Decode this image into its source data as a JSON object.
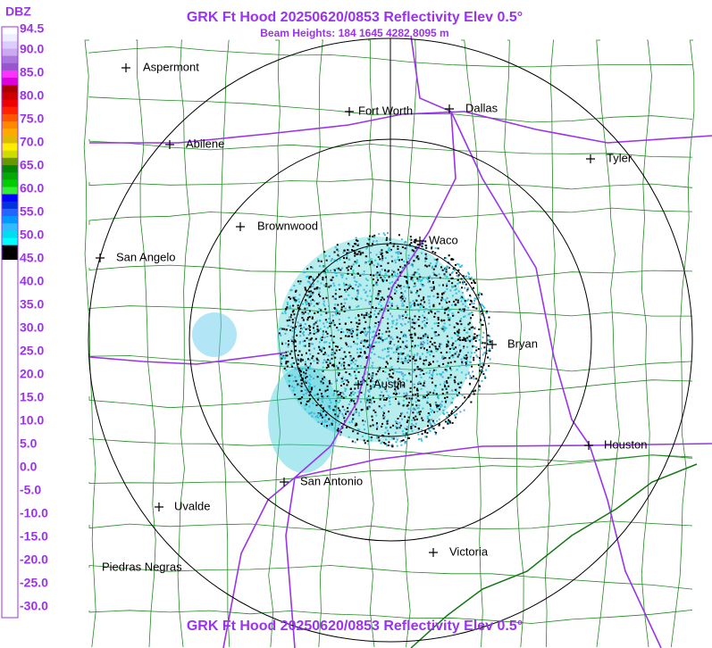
{
  "header": {
    "title": "GRK Ft Hood 20250620/0853 Reflectivity Elev 0.5°",
    "subtitle": "Beam Heights: 184 1645 4282 8095 m",
    "footer": "GRK Ft Hood 20250620/0853 Reflectivity Elev 0.5°"
  },
  "legend": {
    "unit": "DBZ",
    "labels": [
      "94.5",
      "90.0",
      "85.0",
      "80.0",
      "75.0",
      "70.0",
      "65.0",
      "60.0",
      "55.0",
      "50.0",
      "45.0",
      "40.0",
      "35.0",
      "30.0",
      "25.0",
      "20.0",
      "15.0",
      "10.0",
      "5.0",
      "0.0",
      "-5.0",
      "-10.0",
      "-15.0",
      "-20.0",
      "-25.0",
      "-30.0"
    ]
  },
  "cities": [
    "Aspermont",
    "Fort Worth",
    "Dallas",
    "Abilene",
    "Tyler",
    "Brownwood",
    "Waco",
    "San Angelo",
    "Bryan",
    "Austin",
    "Houston",
    "San Antonio",
    "Uvalde",
    "Victoria",
    "Piedras Negras"
  ]
}
